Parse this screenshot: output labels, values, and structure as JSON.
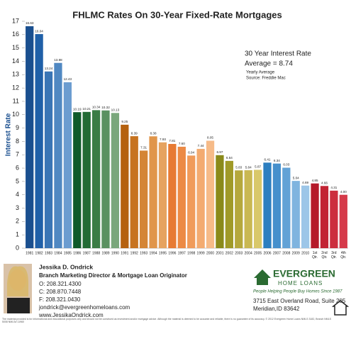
{
  "chart_data": {
    "type": "bar",
    "title": "FHLMC Rates On 30-Year Fixed-Rate Mortgages",
    "ylabel": "Interest Rate",
    "categories": [
      "1981",
      "1982",
      "1983",
      "1984",
      "1985",
      "1986",
      "1987",
      "1988",
      "1989",
      "1990",
      "1991",
      "1992",
      "1993",
      "1994",
      "1995",
      "1996",
      "1997",
      "1998",
      "1999",
      "2000",
      "2001",
      "2002",
      "2003",
      "2004",
      "2005",
      "2006",
      "2007",
      "2008",
      "2009",
      "2010",
      "1st Qtr.",
      "2nd Qtr.",
      "3rd Qtr.",
      "4th Qtr."
    ],
    "values": [
      16.63,
      16.04,
      13.24,
      13.88,
      12.43,
      10.19,
      10.21,
      10.34,
      10.32,
      10.13,
      9.25,
      8.39,
      7.31,
      8.38,
      7.93,
      7.81,
      7.6,
      6.94,
      7.44,
      8.05,
      6.97,
      6.54,
      5.83,
      5.84,
      5.87,
      6.41,
      6.34,
      6.03,
      5.04,
      4.69,
      4.85,
      4.66,
      4.31,
      4.0
    ],
    "value_labels": [
      "16.63",
      "16.04",
      "13.24",
      "13.88",
      "12.43",
      "10.19",
      "10.21",
      "10.34",
      "10.32",
      "10.13",
      "9.25",
      "8.39",
      "7.31",
      "8.38",
      "7.93",
      "7.81",
      "7.60",
      "6.94",
      "7.44",
      "8.05",
      "6.97",
      "6.54",
      "5.83",
      "5.84",
      "5.87",
      "6.41",
      "6.34",
      "6.03",
      "5.04",
      "4.69",
      "4.85",
      "4.66",
      "4.31",
      "4.00"
    ],
    "colors": [
      "#1a4f8f",
      "#2060a8",
      "#3a75b5",
      "#5088c2",
      "#6b9cd0",
      "#0f5a2a",
      "#236b35",
      "#3b7d45",
      "#5a9160",
      "#7aa77c",
      "#b5610f",
      "#c77320",
      "#d48535",
      "#e0954a",
      "#e6a360",
      "#e77a33",
      "#ec8a45",
      "#f09b5a",
      "#f3ab70",
      "#f6bb88",
      "#8a8a1a",
      "#a09a28",
      "#b5a83c",
      "#c9b852",
      "#d9c86a",
      "#2c7fc0",
      "#4690cc",
      "#62a2d6",
      "#7fb4df",
      "#9cc6e8",
      "#b51a2a",
      "#c22333",
      "#cc2e3e",
      "#d53a4a"
    ],
    "ylim": [
      0,
      17
    ],
    "yticks": [
      0,
      1,
      2,
      3,
      4,
      5,
      6,
      7,
      8,
      9,
      10,
      11,
      12,
      13,
      14,
      15,
      16,
      17
    ],
    "annotations": [
      "30 Year Interest Rate",
      "Average = 8.74",
      "Yearly Average",
      "Source: Freddie Mac"
    ]
  },
  "footer": {
    "name": "Jessika D. Ondrick",
    "role": "Branch Marketing Director & Mortgage Loan Originator",
    "contacts": [
      "O: 208.321.4300",
      "C: 208.870.7448",
      "F: 208.321.0430",
      "jondrick@evergreenhomeloans.com",
      "www.JessikaOndrick.com"
    ],
    "logo": "EVERGREEN",
    "logo_sub": "HOME LOANS",
    "tagline": "People Helping People Buy Homes Since 1987",
    "address": [
      "3715 East Overland Road, Suite 205",
      "Meridian,ID 83642"
    ],
    "disclaimer": "The material provided is for informational and educational purposes only and should not be construed as investment and/or mortgage advice. Although the material is deemed to be accurate and reliable, there is no guarantee of its accuracy. © 2012 Evergreen Home Loans NMLS 3182, Branch NMLS 5008 NMLS# 11960"
  }
}
